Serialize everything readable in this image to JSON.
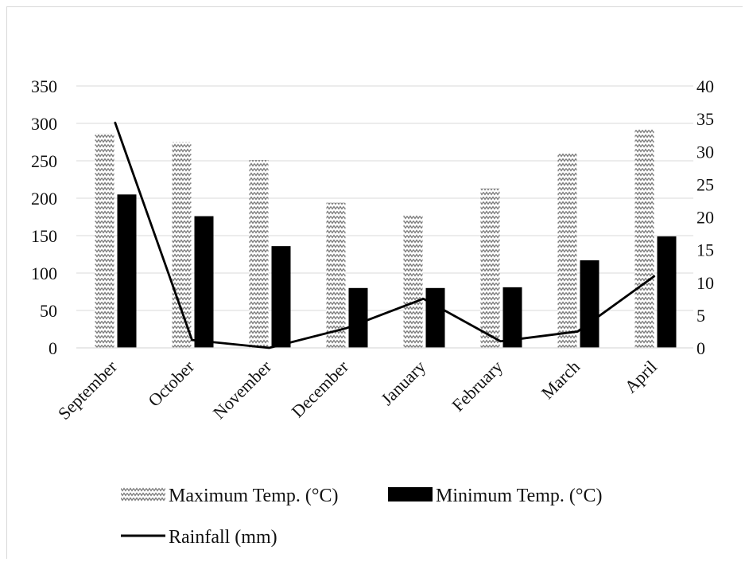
{
  "chart_data": {
    "type": "bar",
    "categories": [
      "September",
      "October",
      "November",
      "December",
      "January",
      "February",
      "March",
      "April"
    ],
    "series": [
      {
        "name": "Maximum Temp. (°C)",
        "kind": "bar",
        "axis": "left",
        "pattern": "zigzag",
        "values": [
          287,
          275,
          251,
          194,
          178,
          213,
          260,
          293
        ]
      },
      {
        "name": "Minimum Temp. (°C)",
        "kind": "bar",
        "axis": "left",
        "color": "#000000",
        "values": [
          205,
          176,
          136,
          80,
          80,
          81,
          117,
          149
        ]
      },
      {
        "name": "Rainfall (mm)",
        "kind": "line",
        "axis": "right",
        "color": "#000000",
        "values": [
          34.5,
          1.2,
          0,
          3,
          7.5,
          1,
          2.5,
          11
        ]
      }
    ],
    "y_left": {
      "min": 0,
      "max": 350,
      "ticks": [
        "0",
        "50",
        "100",
        "150",
        "200",
        "250",
        "300",
        "350"
      ]
    },
    "y_right": {
      "min": 0,
      "max": 40,
      "ticks": [
        "0",
        "5",
        "10",
        "15",
        "20",
        "25",
        "30",
        "35",
        "40"
      ]
    },
    "grid": true,
    "legend_position": "bottom"
  }
}
